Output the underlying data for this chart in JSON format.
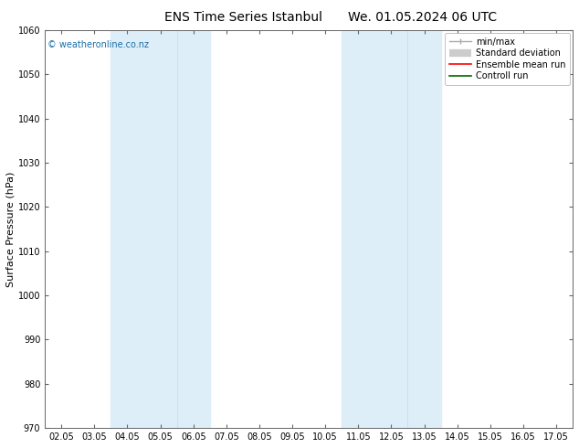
{
  "title_left": "ENS Time Series Istanbul",
  "title_right": "We. 01.05.2024 06 UTC",
  "ylabel": "Surface Pressure (hPa)",
  "ylim": [
    970,
    1060
  ],
  "yticks": [
    970,
    980,
    990,
    1000,
    1010,
    1020,
    1030,
    1040,
    1050,
    1060
  ],
  "xtick_labels": [
    "02.05",
    "03.05",
    "04.05",
    "05.05",
    "06.05",
    "07.05",
    "08.05",
    "09.05",
    "10.05",
    "11.05",
    "12.05",
    "13.05",
    "14.05",
    "15.05",
    "16.05",
    "17.05"
  ],
  "shaded_bands": [
    {
      "xmin": 2,
      "xmax": 4,
      "color": "#ddeef8",
      "alpha": 1.0
    },
    {
      "xmin": 9,
      "xmax": 11,
      "color": "#ddeef8",
      "alpha": 1.0
    }
  ],
  "band_dividers": [
    3,
    10
  ],
  "legend_items": [
    {
      "label": "min/max",
      "color": "#aaaaaa",
      "lw": 1.0
    },
    {
      "label": "Standard deviation",
      "color": "#cccccc",
      "lw": 6
    },
    {
      "label": "Ensemble mean run",
      "color": "#ff0000",
      "lw": 1.2
    },
    {
      "label": "Controll run",
      "color": "#006600",
      "lw": 1.2
    }
  ],
  "watermark": "© weatheronline.co.nz",
  "background_color": "#ffffff",
  "plot_bg_color": "#ffffff",
  "tick_color": "#333333",
  "title_fontsize": 10,
  "tick_fontsize": 7,
  "ylabel_fontsize": 8,
  "legend_fontsize": 7
}
